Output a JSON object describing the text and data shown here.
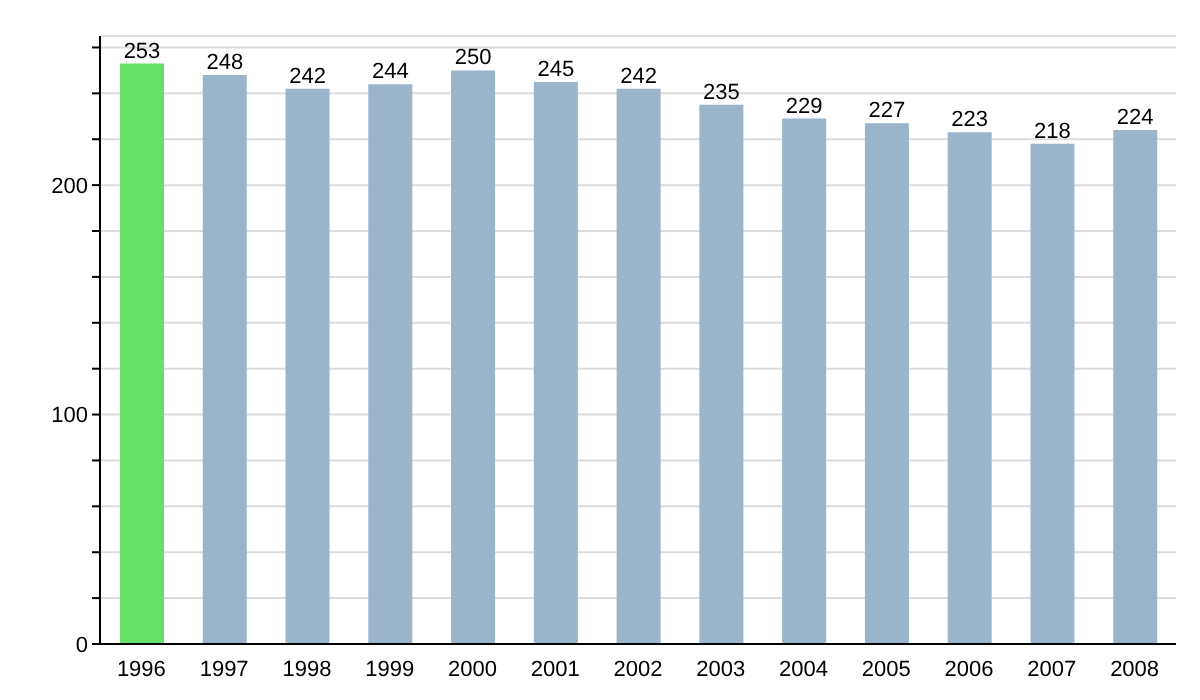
{
  "chart_data": {
    "type": "bar",
    "categories": [
      "1996",
      "1997",
      "1998",
      "1999",
      "2000",
      "2001",
      "2002",
      "2003",
      "2004",
      "2005",
      "2006",
      "2007",
      "2008"
    ],
    "values": [
      253,
      248,
      242,
      244,
      250,
      245,
      242,
      235,
      229,
      227,
      223,
      218,
      224
    ],
    "colors": [
      "#66e066",
      "#9ab4cc",
      "#9ab4cc",
      "#9ab4cc",
      "#9ab4cc",
      "#9ab4cc",
      "#9ab4cc",
      "#9ab4cc",
      "#9ab4cc",
      "#9ab4cc",
      "#9ab4cc",
      "#9ab4cc",
      "#9ab4cc"
    ],
    "ylim": [
      0,
      265
    ],
    "yticks": [
      0,
      {
        "value": 20,
        "label": null
      },
      {
        "value": 40,
        "label": null
      },
      {
        "value": 60,
        "label": null
      },
      {
        "value": 80,
        "label": null
      },
      100,
      {
        "value": 120,
        "label": null
      },
      {
        "value": 140,
        "label": null
      },
      {
        "value": 160,
        "label": null
      },
      {
        "value": 180,
        "label": null
      },
      200,
      {
        "value": 220,
        "label": null
      },
      {
        "value": 240,
        "label": null
      },
      {
        "value": 260,
        "label": null
      }
    ],
    "grid": "y",
    "data_labels": true,
    "legend": false
  }
}
